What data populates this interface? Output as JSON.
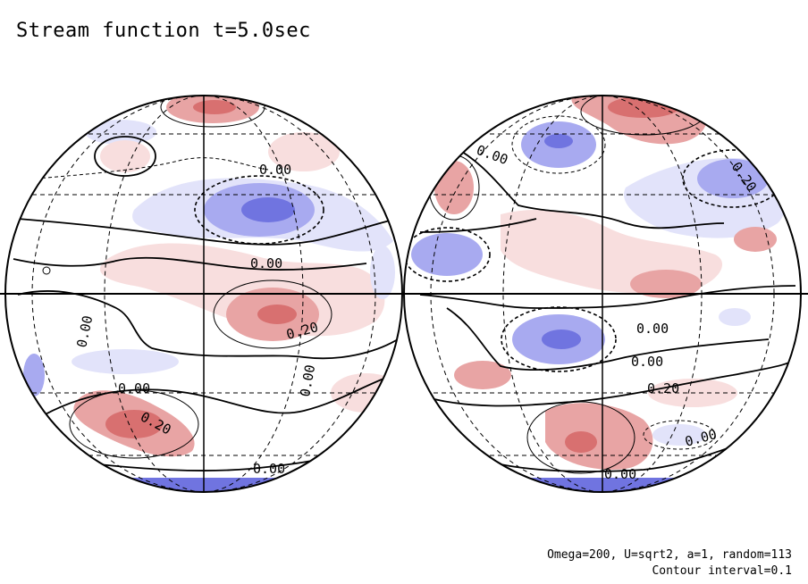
{
  "title": "Stream function t=5.0sec",
  "footer": {
    "params": "Omega=200, U=sqrt2, a=1, random=113",
    "contour_interval": "Contour interval=0.1"
  },
  "contour_labels": {
    "left": [
      "0.00",
      "0.00",
      "0.00",
      "0.20",
      "0.00",
      "0.00",
      "0.20",
      "0.00"
    ],
    "right": [
      "0.00",
      "0.20",
      "0.00",
      "0.00",
      "0.20",
      "0.00",
      "0.00"
    ]
  },
  "colors": {
    "positive": "#e8a4a4",
    "positive_light": "#f8dede",
    "positive_strong": "#d87070",
    "negative": "#a8aaf0",
    "negative_light": "#e2e3fa",
    "negative_strong": "#7074e0",
    "contour": "#000000"
  }
}
